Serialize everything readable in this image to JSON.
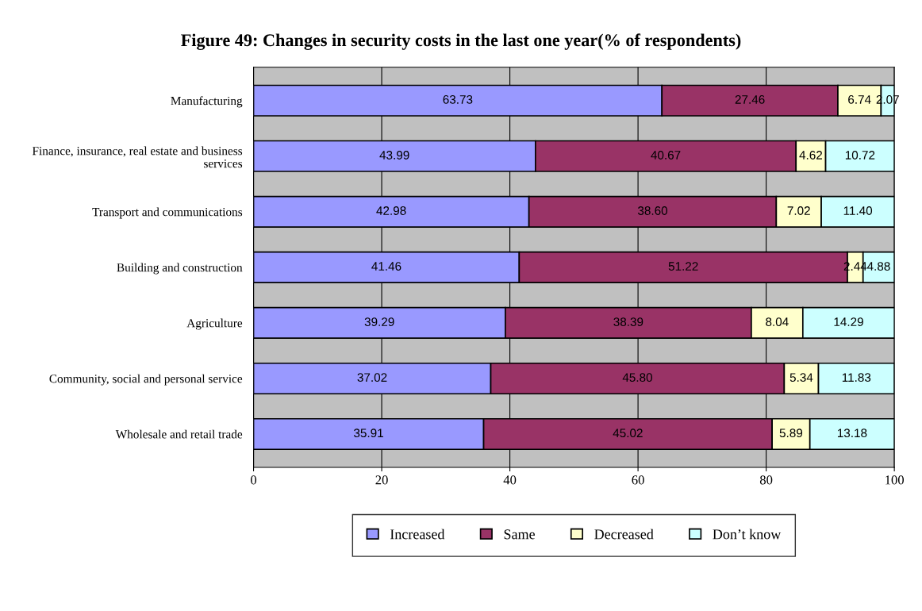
{
  "chart_data": {
    "type": "bar",
    "orientation": "horizontal",
    "stacked": true,
    "title": "Figure 49: Changes in security costs in the last one year(% of respondents)",
    "categories": [
      "Manufacturing",
      "Finance, insurance, real estate and business services",
      "Transport and communications",
      "Building and construction",
      "Agriculture",
      "Community, social and personal service",
      "Wholesale and retail trade"
    ],
    "series": [
      {
        "name": "Increased",
        "color": "#9999ff",
        "values": [
          63.73,
          43.99,
          42.98,
          41.46,
          39.29,
          37.02,
          35.91
        ],
        "value_labels": [
          "63.73",
          "43.99",
          "42.98",
          "41.46",
          "39.29",
          "37.02",
          "35.91"
        ]
      },
      {
        "name": "Same",
        "color": "#993366",
        "values": [
          27.46,
          40.67,
          38.6,
          51.22,
          38.39,
          45.8,
          45.02
        ],
        "value_labels": [
          "27.46",
          "40.67",
          "38.60",
          "51.22",
          "38.39",
          "45.80",
          "45.02"
        ]
      },
      {
        "name": "Decreased",
        "color": "#ffffcc",
        "values": [
          6.74,
          4.62,
          7.02,
          2.44,
          8.04,
          5.34,
          5.89
        ],
        "value_labels": [
          "6.74",
          "4.62",
          "7.02",
          "2.44",
          "8.04",
          "5.34",
          "5.89"
        ]
      },
      {
        "name": "Don’t know",
        "color": "#ccffff",
        "values": [
          2.07,
          10.72,
          11.4,
          4.88,
          14.29,
          11.83,
          13.18
        ],
        "value_labels": [
          "2.07",
          "10.72",
          "11.40",
          "4.88",
          "14.29",
          "11.83",
          "13.18"
        ]
      }
    ],
    "xlim": [
      0,
      100
    ],
    "xticks": [
      0,
      20,
      40,
      60,
      80,
      100
    ],
    "grid": "x",
    "legend": "bottom"
  }
}
